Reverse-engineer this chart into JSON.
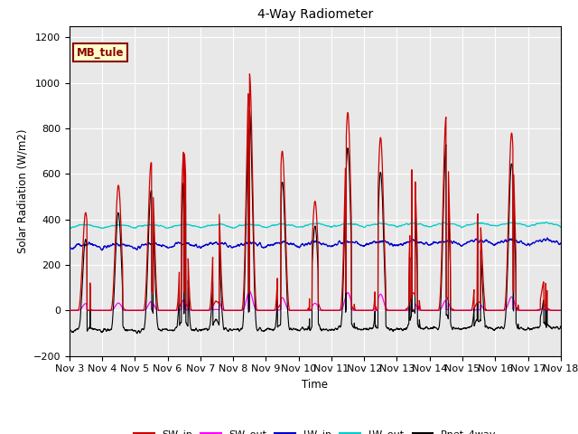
{
  "title": "4-Way Radiometer",
  "xlabel": "Time",
  "ylabel": "Solar Radiation (W/m2)",
  "ylim": [
    -200,
    1250
  ],
  "yticks": [
    -200,
    0,
    200,
    400,
    600,
    800,
    1000,
    1200
  ],
  "background_color": "#ffffff",
  "plot_bg_color": "#e8e8e8",
  "annotation_label": "MB_tule",
  "annotation_bg": "#ffffcc",
  "annotation_border": "#8b0000",
  "colors": {
    "SW_in": "#cc0000",
    "SW_out": "#ff00ff",
    "LW_in": "#0000cc",
    "LW_out": "#00cccc",
    "Rnet_4way": "#000000"
  },
  "xtick_labels": [
    "Nov 3",
    "Nov 4",
    "Nov 5",
    "Nov 6",
    "Nov 7",
    "Nov 8",
    "Nov 9",
    "Nov 10",
    "Nov 11",
    "Nov 12",
    "Nov 13",
    "Nov 14",
    "Nov 15",
    "Nov 16",
    "Nov 17",
    "Nov 18"
  ],
  "n_days": 15,
  "samples_per_day": 144,
  "lw_in_base": 280,
  "lw_out_base": 365
}
